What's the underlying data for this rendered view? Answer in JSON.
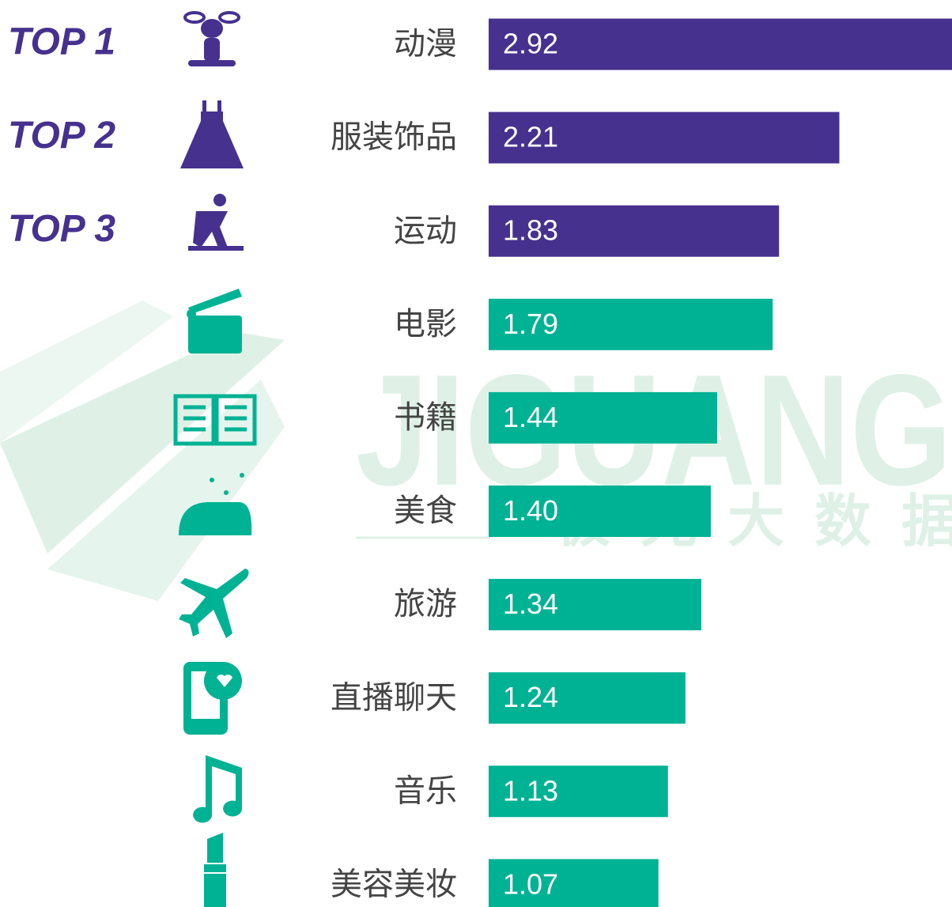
{
  "chart_data": {
    "type": "bar",
    "categories": [
      "动漫",
      "服装饰品",
      "运动",
      "电影",
      "书籍",
      "美食",
      "旅游",
      "直播聊天",
      "音乐",
      "美容美妆"
    ],
    "values": [
      2.92,
      2.21,
      1.83,
      1.79,
      1.44,
      1.4,
      1.34,
      1.24,
      1.13,
      1.07
    ],
    "value_labels": [
      "2.92",
      "2.21",
      "1.83",
      "1.79",
      "1.44",
      "1.40",
      "1.34",
      "1.24",
      "1.13",
      "1.07"
    ],
    "colors": [
      "#46318f",
      "#46318f",
      "#46318f",
      "#00b294",
      "#00b294",
      "#00b294",
      "#00b294",
      "#00b294",
      "#00b294",
      "#00b294"
    ],
    "rank_labels": [
      "TOP 1",
      "TOP 2",
      "TOP 3"
    ],
    "watermark": [
      "JIGUANG",
      "极光大数据"
    ]
  }
}
